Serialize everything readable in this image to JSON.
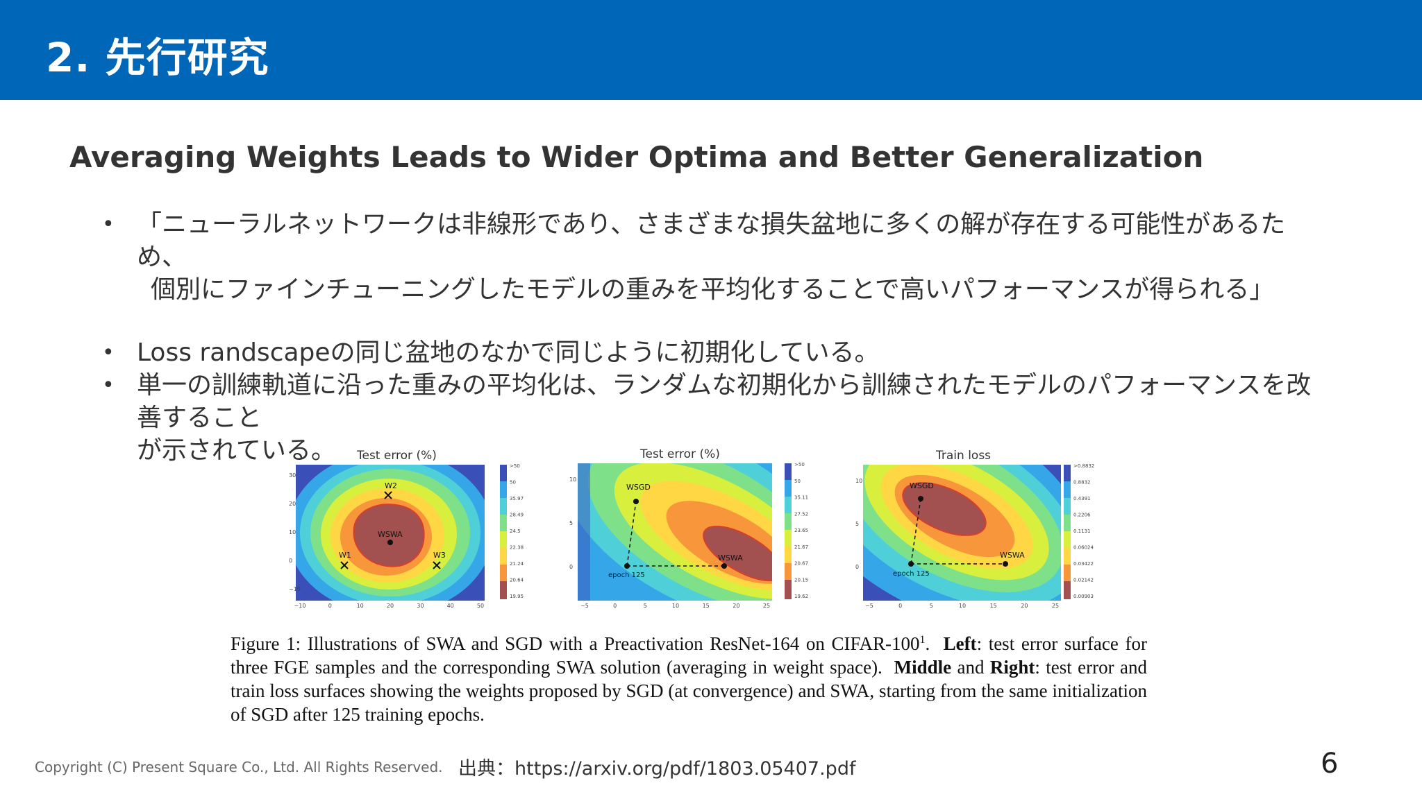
{
  "header": {
    "title": "2. 先行研究"
  },
  "subtitle": "Averaging Weights Leads to Wider Optima and Better Generalization",
  "bullets": [
    {
      "line1": "「ニューラルネットワークは非線形であり、さまざまな損失盆地に多くの解が存在する可能性があるため、",
      "line2": "個別にファインチューニングしたモデルの重みを平均化することで高いパフォーマンスが得られる」"
    },
    {
      "line1": "Loss randscapeの同じ盆地のなかで同じように初期化している。"
    },
    {
      "line1": "単一の訓練軌道に沿った重みの平均化は、ランダムな初期化から訓練されたモデルのパフォーマンスを改善すること",
      "line2": "が示されている。"
    }
  ],
  "bullet_symbol": "•",
  "figure": {
    "panels": [
      {
        "title": "Test error (%)",
        "colorbar": [
          ">50",
          "50",
          "35.97",
          "28.49",
          "24.5",
          "22.38",
          "21.24",
          "20.64",
          "19.95"
        ],
        "xticks": [
          "−10",
          "0",
          "10",
          "20",
          "30",
          "40",
          "50"
        ],
        "yticks": [
          "30",
          "20",
          "10",
          "0",
          "−10"
        ],
        "points": [
          "W2",
          "WSWA",
          "W1",
          "W3"
        ]
      },
      {
        "title": "Test error (%)",
        "colorbar": [
          ">50",
          "50",
          "35.11",
          "27.52",
          "23.65",
          "21.67",
          "20.67",
          "20.15",
          "19.62"
        ],
        "xticks": [
          "−5",
          "0",
          "5",
          "10",
          "15",
          "20",
          "25"
        ],
        "yticks": [
          "10",
          "5",
          "0"
        ],
        "points": [
          "WSGD",
          "WSWA",
          "epoch 125"
        ]
      },
      {
        "title": "Train loss",
        "colorbar": [
          ">0.8832",
          "0.8832",
          "0.4391",
          "0.2206",
          "0.1131",
          "0.06024",
          "0.03422",
          "0.02142",
          "0.00903"
        ],
        "xticks": [
          "−5",
          "0",
          "5",
          "10",
          "15",
          "20",
          "25"
        ],
        "yticks": [
          "10",
          "5",
          "0"
        ],
        "points": [
          "WSGD",
          "WSWA",
          "epoch 125"
        ]
      }
    ],
    "caption": {
      "part1": "Figure 1:  Illustrations of SWA and SGD with a Preactivation ResNet-164 on CIFAR-100",
      "sup": "1",
      "part2": ".",
      "left_bold": "Left",
      "part3": ":  test error surface for three FGE samples and the corresponding SWA solution (averaging in weight space).",
      "middle_bold": "Middle",
      "and_text": " and ",
      "right_bold": "Right",
      "part4": ":  test error and train loss surfaces showing the weights proposed by SGD (at convergence) and SWA, starting from the same initialization of SGD after 125 training epochs."
    }
  },
  "footer": {
    "copyright": "Copyright (C) Present Square Co., Ltd. All Rights Reserved.",
    "source": "出典：https://arxiv.org/pdf/1803.05407.pdf",
    "page_number": "6"
  },
  "colors": {
    "header_bg": "#0066b8",
    "header_text": "#ffffff",
    "text": "#333333"
  }
}
